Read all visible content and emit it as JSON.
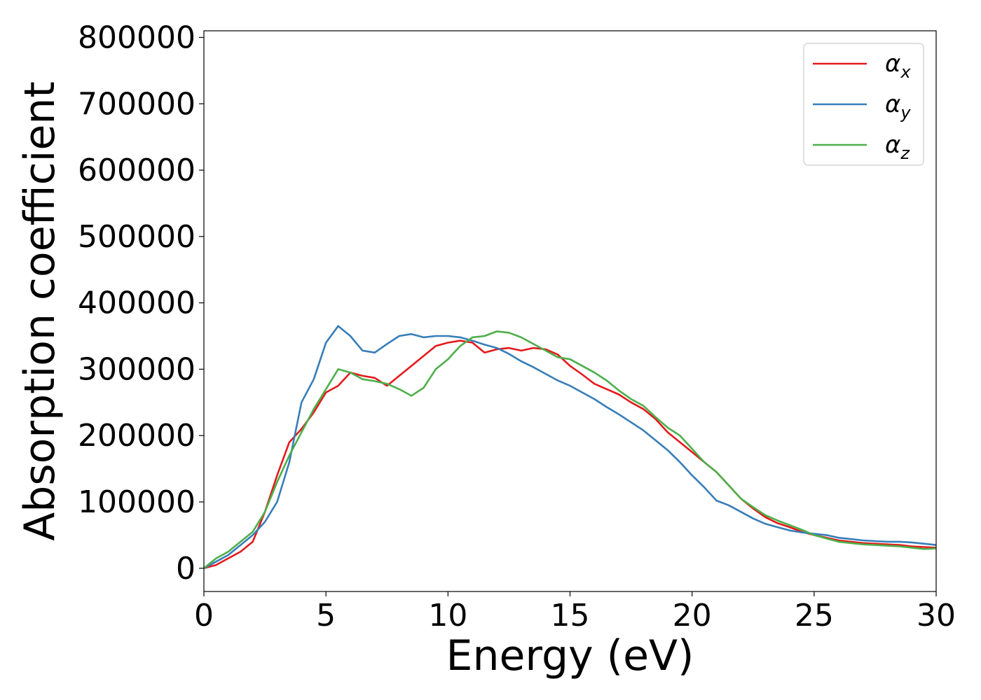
{
  "chart_data": {
    "type": "line",
    "title": "",
    "xlabel": "Energy (eV)",
    "ylabel": "Absorption coefficient",
    "xlim": [
      0,
      30
    ],
    "ylim": [
      -35000,
      810000
    ],
    "xticks": [
      0,
      5,
      10,
      15,
      20,
      25,
      30
    ],
    "yticks": [
      0,
      100000,
      200000,
      300000,
      400000,
      500000,
      600000,
      700000,
      800000
    ],
    "grid": false,
    "legend_position": "top-right",
    "series": [
      {
        "name": "αx",
        "name_base": "α",
        "name_sub": "x",
        "color": "#e41a1c",
        "x": [
          0,
          0.5,
          1,
          1.5,
          2,
          2.5,
          3,
          3.5,
          4,
          4.5,
          5,
          5.5,
          6,
          6.5,
          7,
          7.5,
          8,
          8.5,
          9,
          9.5,
          10,
          10.5,
          11,
          11.5,
          12,
          12.5,
          13,
          13.5,
          14,
          14.5,
          15,
          15.5,
          16,
          16.5,
          17,
          17.5,
          18,
          18.5,
          19,
          19.5,
          20,
          20.5,
          21,
          21.5,
          22,
          22.5,
          23,
          23.5,
          24,
          24.5,
          25,
          25.5,
          26,
          26.5,
          27,
          27.5,
          28,
          28.5,
          29,
          29.5,
          30
        ],
        "y": [
          0,
          5000,
          15000,
          25000,
          40000,
          85000,
          140000,
          190000,
          210000,
          235000,
          265000,
          275000,
          295000,
          290000,
          287000,
          275000,
          290000,
          305000,
          320000,
          335000,
          340000,
          343000,
          340000,
          325000,
          330000,
          332000,
          328000,
          332000,
          330000,
          322000,
          305000,
          292000,
          278000,
          270000,
          262000,
          250000,
          240000,
          225000,
          205000,
          190000,
          175000,
          160000,
          145000,
          125000,
          105000,
          90000,
          77000,
          68000,
          62000,
          55000,
          50000,
          46000,
          42000,
          40000,
          38000,
          37000,
          36000,
          35000,
          33000,
          32000,
          31000
        ]
      },
      {
        "name": "αy",
        "name_base": "α",
        "name_sub": "y",
        "color": "#377eb8",
        "x": [
          0,
          0.5,
          1,
          1.5,
          2,
          2.5,
          3,
          3.5,
          4,
          4.5,
          5,
          5.5,
          6,
          6.5,
          7,
          7.5,
          8,
          8.5,
          9,
          9.5,
          10,
          10.5,
          11,
          11.5,
          12,
          12.5,
          13,
          13.5,
          14,
          14.5,
          15,
          15.5,
          16,
          16.5,
          17,
          17.5,
          18,
          18.5,
          19,
          19.5,
          20,
          20.5,
          21,
          21.5,
          22,
          22.5,
          23,
          23.5,
          24,
          24.5,
          25,
          25.5,
          26,
          26.5,
          27,
          27.5,
          28,
          28.5,
          29,
          29.5,
          30
        ],
        "y": [
          0,
          10000,
          20000,
          35000,
          50000,
          70000,
          100000,
          160000,
          250000,
          285000,
          340000,
          365000,
          350000,
          328000,
          325000,
          338000,
          350000,
          353000,
          348000,
          350000,
          350000,
          348000,
          343000,
          337000,
          332000,
          323000,
          312000,
          303000,
          293000,
          283000,
          275000,
          265000,
          255000,
          243000,
          232000,
          220000,
          208000,
          193000,
          178000,
          160000,
          140000,
          122000,
          102000,
          95000,
          85000,
          75000,
          67000,
          62000,
          57000,
          54000,
          52000,
          50000,
          46000,
          44000,
          42000,
          41000,
          40000,
          40000,
          39000,
          37000,
          35000
        ]
      },
      {
        "name": "αz",
        "name_base": "α",
        "name_sub": "z",
        "color": "#4daf4a",
        "x": [
          0,
          0.5,
          1,
          1.5,
          2,
          2.5,
          3,
          3.5,
          4,
          4.5,
          5,
          5.5,
          6,
          6.5,
          7,
          7.5,
          8,
          8.5,
          9,
          9.5,
          10,
          10.5,
          11,
          11.5,
          12,
          12.5,
          13,
          13.5,
          14,
          14.5,
          15,
          15.5,
          16,
          16.5,
          17,
          17.5,
          18,
          18.5,
          19,
          19.5,
          20,
          20.5,
          21,
          21.5,
          22,
          22.5,
          23,
          23.5,
          24,
          24.5,
          25,
          25.5,
          26,
          26.5,
          27,
          27.5,
          28,
          28.5,
          29,
          29.5,
          30
        ],
        "y": [
          0,
          15000,
          25000,
          40000,
          55000,
          85000,
          130000,
          170000,
          205000,
          240000,
          270000,
          300000,
          295000,
          285000,
          282000,
          278000,
          270000,
          260000,
          272000,
          300000,
          315000,
          335000,
          348000,
          350000,
          357000,
          355000,
          348000,
          338000,
          328000,
          318000,
          315000,
          305000,
          295000,
          283000,
          268000,
          255000,
          245000,
          228000,
          212000,
          200000,
          180000,
          160000,
          145000,
          125000,
          105000,
          92000,
          80000,
          72000,
          65000,
          58000,
          50000,
          45000,
          40000,
          38000,
          36000,
          35000,
          34000,
          33000,
          31000,
          29000,
          30000
        ]
      }
    ]
  }
}
